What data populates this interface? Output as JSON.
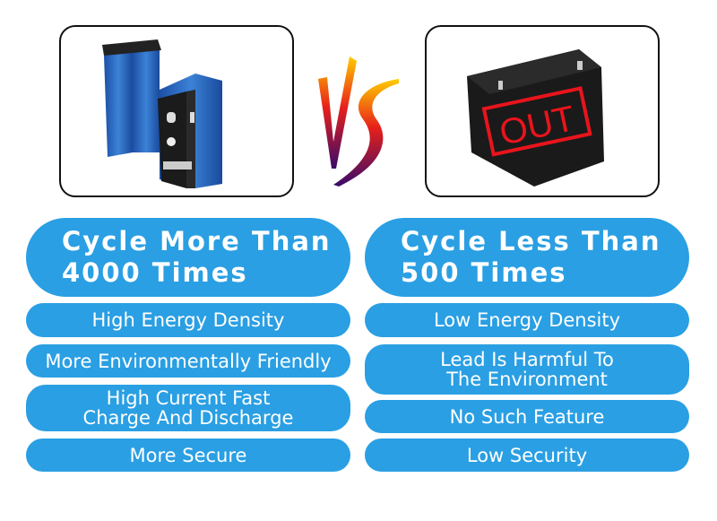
{
  "left": {
    "image": "lifepo4-prismatic-battery-cells",
    "headline": "Cycle More Than\n4000 Times",
    "features": [
      "High Energy Density",
      "More Environmentally Friendly",
      "High Current Fast\nCharge And Discharge",
      "More Secure"
    ]
  },
  "vs": {
    "text": "VS"
  },
  "right": {
    "image": "lead-acid-battery",
    "stamp": "OUT",
    "headline": "Cycle Less Than\n500 Times",
    "features": [
      "Low Energy Density",
      "Lead Is Harmful To\nThe Environment",
      "No Such Feature",
      "Low Security"
    ]
  },
  "colors": {
    "accent": "#2a9fe3",
    "stamp": "#e8141c"
  }
}
